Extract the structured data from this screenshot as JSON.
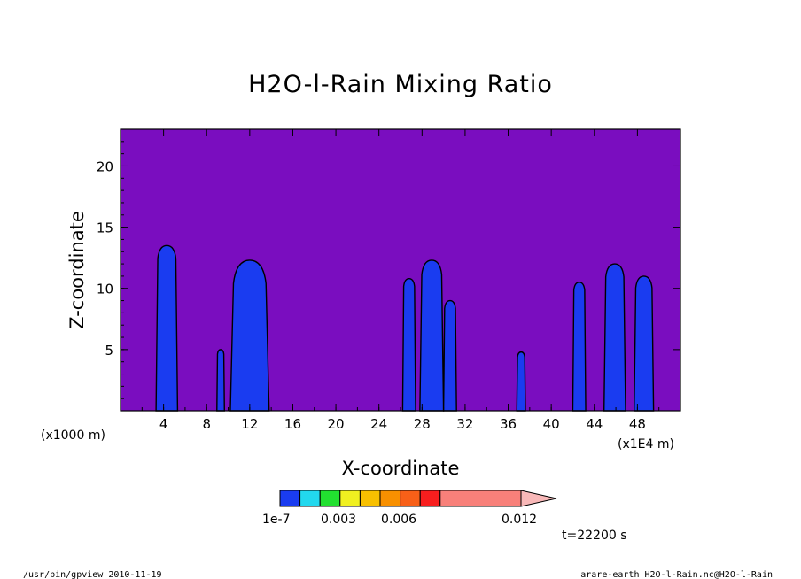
{
  "chart_data": {
    "type": "heatmap",
    "title": "H2O-l-Rain Mixing Ratio",
    "xlabel": "X-coordinate",
    "ylabel": "Z-coordinate",
    "x_unit_left": "(x1000 m)",
    "x_unit_right": "(x1E4 m)",
    "xlim": [
      0,
      52
    ],
    "ylim": [
      0,
      23
    ],
    "x_ticks": [
      "4",
      "8",
      "12",
      "16",
      "20",
      "24",
      "28",
      "32",
      "36",
      "40",
      "44",
      "48"
    ],
    "y_ticks": [
      "5",
      "10",
      "15",
      "20"
    ],
    "background_color": "#7a0dbf",
    "columns": [
      {
        "x_center": 4.3,
        "half_width": 1.0,
        "top": 13.5,
        "color": "#1a3cf0"
      },
      {
        "x_center": 9.3,
        "half_width": 0.35,
        "top": 5.0,
        "color": "#1a3cf0"
      },
      {
        "x_center": 12.0,
        "half_width": 1.8,
        "top": 12.3,
        "color": "#1a3cf0"
      },
      {
        "x_center": 26.8,
        "half_width": 0.6,
        "top": 10.8,
        "color": "#1a3cf0"
      },
      {
        "x_center": 28.9,
        "half_width": 1.1,
        "top": 12.3,
        "color": "#1a3cf0"
      },
      {
        "x_center": 30.6,
        "half_width": 0.6,
        "top": 9.0,
        "color": "#1a3cf0"
      },
      {
        "x_center": 37.2,
        "half_width": 0.4,
        "top": 4.8,
        "color": "#1a3cf0"
      },
      {
        "x_center": 42.6,
        "half_width": 0.6,
        "top": 10.5,
        "color": "#1a3cf0"
      },
      {
        "x_center": 45.9,
        "half_width": 1.0,
        "top": 12.0,
        "color": "#1a3cf0"
      },
      {
        "x_center": 48.6,
        "half_width": 0.9,
        "top": 11.0,
        "color": "#1a3cf0"
      }
    ],
    "colorbar": {
      "colors": [
        "#1a3cf0",
        "#22d8ee",
        "#22e030",
        "#f0f020",
        "#f8c000",
        "#f89000",
        "#f86018",
        "#f81e1e",
        "#f8807a",
        "#f8b8b8"
      ],
      "labels": [
        "1e-7",
        "0.003",
        "0.006",
        "0.012"
      ]
    }
  },
  "annotations": {
    "time": "t=22200 s",
    "footer_left": "/usr/bin/gpview  2010-11-19",
    "footer_right": "arare-earth_H2O-l-Rain.nc@H2O-l-Rain"
  }
}
